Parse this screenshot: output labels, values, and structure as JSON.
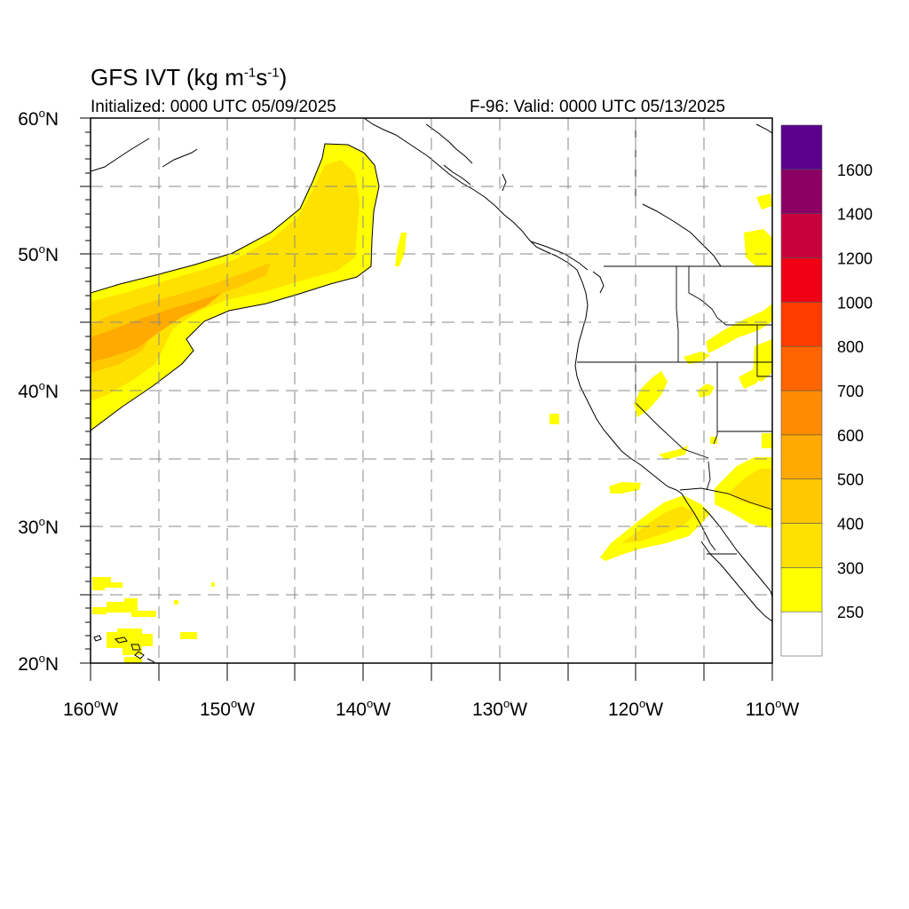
{
  "header": {
    "title_text": "GFS IVT (kg m",
    "title_exp1": "-1",
    "title_mid": "s",
    "title_exp2": "-1",
    "title_end": ")",
    "initialized": "Initialized: 0000 UTC 05/09/2025",
    "valid": "F-96: Valid: 0000 UTC 05/13/2025"
  },
  "map": {
    "lat_labels": [
      {
        "deg": "60",
        "suffix": "N"
      },
      {
        "deg": "50",
        "suffix": "N"
      },
      {
        "deg": "40",
        "suffix": "N"
      },
      {
        "deg": "30",
        "suffix": "N"
      },
      {
        "deg": "20",
        "suffix": "N"
      }
    ],
    "lon_labels": [
      {
        "deg": "160",
        "suffix": "W"
      },
      {
        "deg": "150",
        "suffix": "W"
      },
      {
        "deg": "140",
        "suffix": "W"
      },
      {
        "deg": "130",
        "suffix": "W"
      },
      {
        "deg": "120",
        "suffix": "W"
      },
      {
        "deg": "110",
        "suffix": "W"
      }
    ],
    "lon_range": [
      -160,
      -110
    ],
    "lat_range": [
      20,
      60
    ],
    "grid": "dashed every 5 degrees"
  },
  "colorbar": {
    "labels": [
      "250",
      "300",
      "400",
      "500",
      "600",
      "700",
      "800",
      "1000",
      "1200",
      "1400",
      "1600"
    ],
    "colors": [
      "#ffffff",
      "#ffff00",
      "#ffe100",
      "#ffc800",
      "#ffaa00",
      "#ff8c00",
      "#ff6400",
      "#ff3c00",
      "#f00014",
      "#c8003c",
      "#8c0064",
      "#5a008c"
    ]
  }
}
